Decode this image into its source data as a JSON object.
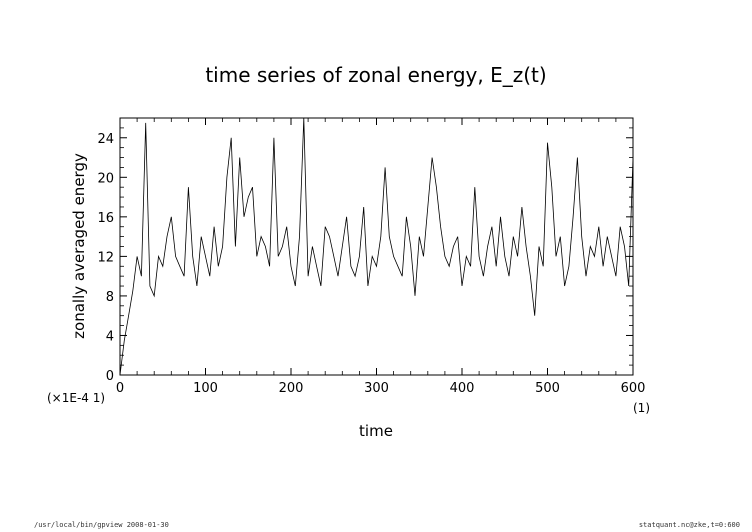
{
  "footer": {
    "left": "/usr/local/bin/gpview  2008-01-30",
    "right": "statquant.nc@zke,t=0:600"
  },
  "chart_data": {
    "type": "line",
    "title": "time series of zonal energy, E_z(t)",
    "xlabel": "time",
    "ylabel": "zonally averaged energy",
    "x_unit": "(1)",
    "y_scale_note": "(×1E-4 1)",
    "xlim": [
      0,
      600
    ],
    "ylim": [
      0,
      26
    ],
    "x_ticks": [
      0,
      100,
      200,
      300,
      400,
      500,
      600
    ],
    "y_ticks": [
      0,
      4,
      8,
      12,
      16,
      20,
      24
    ],
    "grid": false,
    "series": [
      {
        "name": "",
        "x": [
          0,
          5,
          10,
          15,
          20,
          25,
          30,
          35,
          40,
          45,
          50,
          55,
          60,
          65,
          70,
          75,
          80,
          85,
          90,
          95,
          100,
          105,
          110,
          115,
          120,
          125,
          130,
          135,
          140,
          145,
          150,
          155,
          160,
          165,
          170,
          175,
          180,
          185,
          190,
          195,
          200,
          205,
          210,
          215,
          220,
          225,
          230,
          235,
          240,
          245,
          250,
          255,
          260,
          265,
          270,
          275,
          280,
          285,
          290,
          295,
          300,
          305,
          310,
          315,
          320,
          325,
          330,
          335,
          340,
          345,
          350,
          355,
          360,
          365,
          370,
          375,
          380,
          385,
          390,
          395,
          400,
          405,
          410,
          415,
          420,
          425,
          430,
          435,
          440,
          445,
          450,
          455,
          460,
          465,
          470,
          475,
          480,
          485,
          490,
          495,
          500,
          505,
          510,
          515,
          520,
          525,
          530,
          535,
          540,
          545,
          550,
          555,
          560,
          565,
          570,
          575,
          580,
          585,
          590,
          595,
          600
        ],
        "y": [
          0,
          3.5,
          6,
          8.5,
          12,
          10,
          25.5,
          9,
          8,
          12,
          11,
          14,
          16,
          12,
          11,
          10,
          19,
          12,
          9,
          14,
          12,
          10,
          15,
          11,
          13,
          20,
          24,
          13,
          22,
          16,
          18,
          19,
          12,
          14,
          13,
          11,
          24,
          12,
          13,
          15,
          11,
          9,
          14,
          26,
          10,
          13,
          11,
          9,
          15,
          14,
          12,
          10,
          13,
          16,
          11,
          10,
          12,
          17,
          9,
          12,
          11,
          14,
          21,
          14,
          12,
          11,
          10,
          16,
          13,
          8,
          14,
          12,
          17,
          22,
          19,
          15,
          12,
          11,
          13,
          14,
          9,
          12,
          11,
          19,
          12,
          10,
          13,
          15,
          11,
          16,
          12,
          10,
          14,
          12,
          17,
          13,
          10,
          6,
          13,
          11,
          23.5,
          19,
          12,
          14,
          9,
          11,
          16,
          22,
          14,
          10,
          13,
          12,
          15,
          11,
          14,
          12,
          10,
          15,
          13,
          9,
          22
        ]
      }
    ]
  }
}
